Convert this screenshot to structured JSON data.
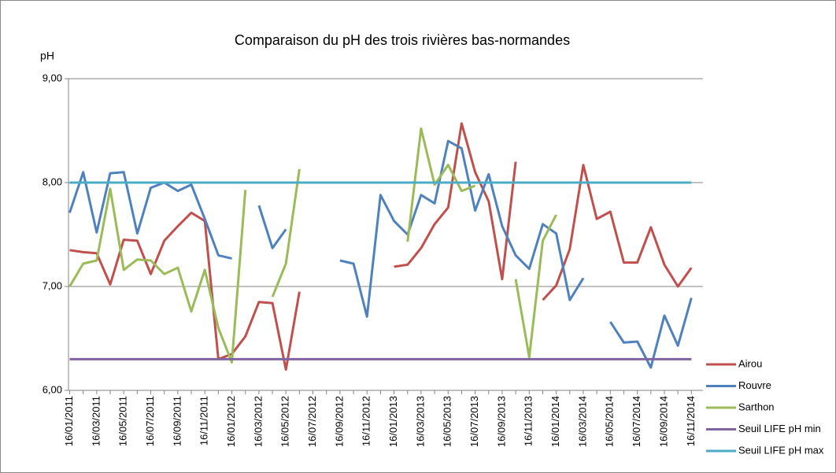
{
  "chart_data": {
    "type": "line",
    "title": "Comparaison du pH des trois rivières bas-normandes",
    "y_label": "pH",
    "categories": [
      "16/01/2011",
      null,
      "16/03/2011",
      null,
      "16/05/2011",
      null,
      "16/07/2011",
      null,
      "16/09/2011",
      null,
      "16/11/2011",
      null,
      "16/01/2012",
      null,
      "16/03/2012",
      null,
      "16/05/2012",
      null,
      "16/07/2012",
      null,
      "16/09/2012",
      null,
      "16/11/2012",
      null,
      "16/01/2013",
      null,
      "16/03/2013",
      null,
      "16/05/2013",
      null,
      "16/07/2013",
      null,
      "16/09/2013",
      null,
      "16/11/2013",
      null,
      "16/01/2014",
      null,
      "16/03/2014",
      null,
      "16/05/2014",
      null,
      "16/07/2014",
      null,
      "16/09/2014",
      null,
      "16/11/2014"
    ],
    "series": [
      {
        "name": "Airou",
        "color": "#c0504d",
        "values": [
          7.35,
          7.33,
          7.32,
          7.02,
          7.45,
          7.44,
          7.12,
          7.44,
          7.58,
          7.71,
          7.63,
          6.3,
          6.35,
          6.52,
          6.85,
          6.84,
          6.2,
          6.95,
          null,
          null,
          null,
          null,
          null,
          null,
          7.19,
          7.21,
          7.37,
          7.6,
          7.76,
          8.57,
          8.1,
          7.82,
          7.07,
          8.2,
          null,
          6.87,
          7.01,
          7.36,
          8.17,
          7.65,
          7.72,
          7.23,
          7.23,
          7.57,
          7.21,
          7.0,
          7.18
        ]
      },
      {
        "name": "Rouvre",
        "color": "#4f81bd",
        "values": [
          7.71,
          8.1,
          7.52,
          8.09,
          8.1,
          7.51,
          7.95,
          8.0,
          7.92,
          7.98,
          7.65,
          7.3,
          7.27,
          null,
          7.78,
          7.37,
          7.55,
          null,
          null,
          null,
          7.25,
          7.22,
          6.71,
          7.88,
          7.63,
          7.5,
          7.88,
          7.8,
          8.4,
          8.33,
          7.73,
          8.08,
          7.58,
          7.3,
          7.17,
          7.6,
          7.51,
          6.87,
          7.08,
          null,
          6.66,
          6.46,
          6.47,
          6.22,
          6.72,
          6.43,
          6.89
        ]
      },
      {
        "name": "Sarthon",
        "color": "#9bbb59",
        "values": [
          7.0,
          7.22,
          7.25,
          7.94,
          7.16,
          7.26,
          7.25,
          7.12,
          7.18,
          6.76,
          7.16,
          6.6,
          6.27,
          7.93,
          null,
          6.9,
          7.22,
          8.13,
          null,
          null,
          null,
          null,
          null,
          null,
          null,
          7.43,
          8.52,
          7.98,
          8.17,
          7.92,
          7.97,
          null,
          null,
          7.07,
          6.32,
          7.44,
          7.69,
          null,
          null,
          null,
          null,
          null,
          null,
          null,
          null,
          null,
          null
        ]
      },
      {
        "name": "Seuil LIFE pH min",
        "color": "#8064a2",
        "values": [
          6.3,
          6.3,
          6.3,
          6.3,
          6.3,
          6.3,
          6.3,
          6.3,
          6.3,
          6.3,
          6.3,
          6.3,
          6.3,
          6.3,
          6.3,
          6.3,
          6.3,
          6.3,
          6.3,
          6.3,
          6.3,
          6.3,
          6.3,
          6.3,
          6.3,
          6.3,
          6.3,
          6.3,
          6.3,
          6.3,
          6.3,
          6.3,
          6.3,
          6.3,
          6.3,
          6.3,
          6.3,
          6.3,
          6.3,
          6.3,
          6.3,
          6.3,
          6.3,
          6.3,
          6.3,
          6.3,
          6.3
        ]
      },
      {
        "name": "Seuil LIFE pH max",
        "color": "#4bacc6",
        "values": [
          8,
          8,
          8,
          8,
          8,
          8,
          8,
          8,
          8,
          8,
          8,
          8,
          8,
          8,
          8,
          8,
          8,
          8,
          8,
          8,
          8,
          8,
          8,
          8,
          8,
          8,
          8,
          8,
          8,
          8,
          8,
          8,
          8,
          8,
          8,
          8,
          8,
          8,
          8,
          8,
          8,
          8,
          8,
          8,
          8,
          8,
          8
        ]
      }
    ],
    "ylim": [
      6,
      9
    ],
    "yticks": [
      {
        "value": 6,
        "label": "6,00"
      },
      {
        "value": 7,
        "label": "7,00"
      },
      {
        "value": 8,
        "label": "8,00"
      },
      {
        "value": 9,
        "label": "9,00"
      }
    ],
    "grid": true,
    "legend": "right"
  }
}
